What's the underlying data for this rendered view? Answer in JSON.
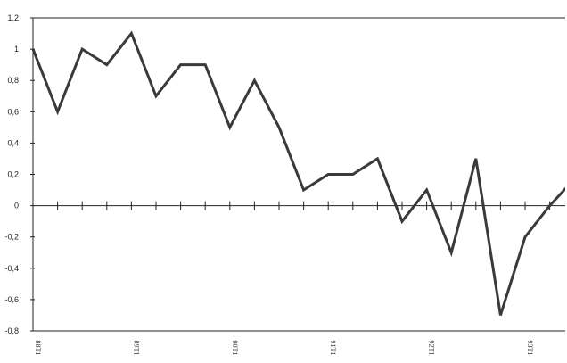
{
  "chart_data": {
    "type": "line",
    "title": "",
    "xlabel": "",
    "ylabel": "",
    "ylim": [
      -0.8,
      1.2
    ],
    "yticks": [
      "1,2",
      "1",
      "0,8",
      "0,6",
      "0,4",
      "0,2",
      "0",
      "-0,2",
      "-0,4",
      "-0,6",
      "-0,8"
    ],
    "ytick_values": [
      1.2,
      1.0,
      0.8,
      0.6,
      0.4,
      0.2,
      0.0,
      -0.2,
      -0.4,
      -0.6,
      -0.8
    ],
    "x_tick_labels": [
      {
        "label": "88T1",
        "index": 0
      },
      {
        "label": "89T1",
        "index": 4
      },
      {
        "label": "90T1",
        "index": 8
      },
      {
        "label": "91T1",
        "index": 12
      },
      {
        "label": "92T1",
        "index": 16
      },
      {
        "label": "93T1",
        "index": 20
      }
    ],
    "grid": false,
    "legend": "none",
    "line_color": "#3a3a3a",
    "series": [
      {
        "values": [
          1.0,
          0.6,
          1.0,
          0.9,
          1.1,
          0.7,
          0.9,
          0.9,
          0.5,
          0.8,
          0.5,
          0.1,
          0.2,
          0.2,
          0.3,
          -0.1,
          0.1,
          -0.3,
          0.3,
          -0.7,
          -0.2,
          0.0,
          0.17
        ]
      }
    ]
  }
}
